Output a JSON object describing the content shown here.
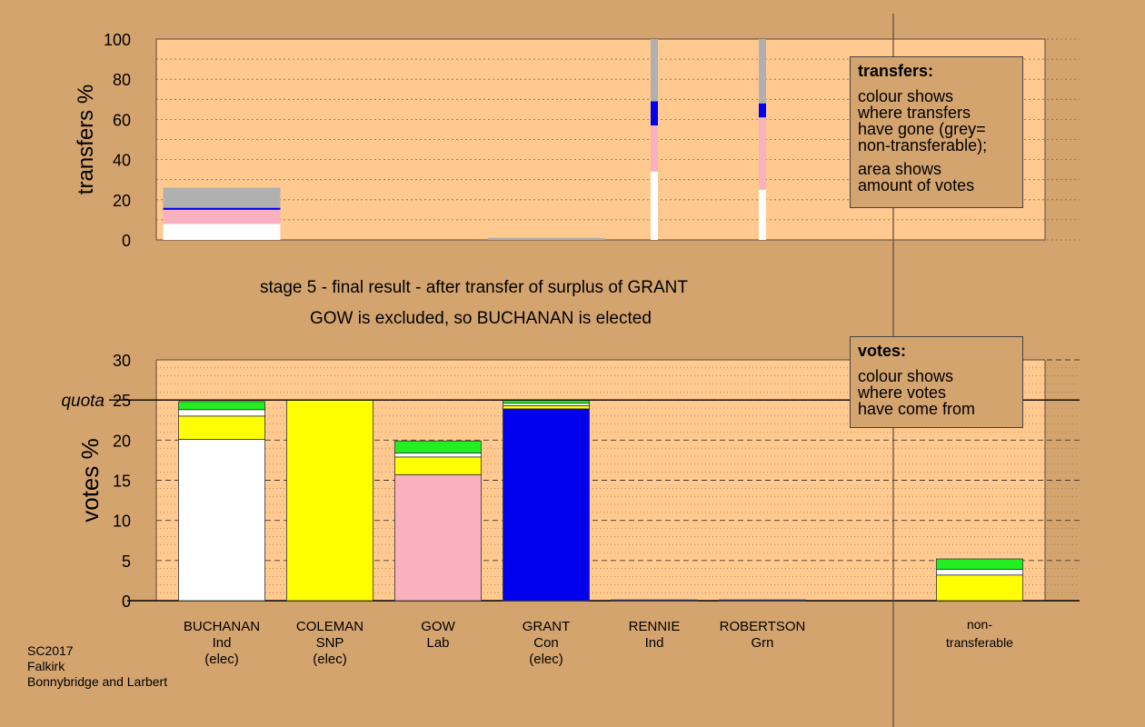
{
  "chart_data": [
    {
      "type": "bar",
      "ylabel": "transfers %",
      "ylim": [
        0,
        100
      ],
      "yticks": [
        "0",
        "20",
        "40",
        "60",
        "80",
        "100"
      ],
      "grid": "dotted",
      "colors": {
        "white": "#ffffff",
        "pink": "#f9b1c0",
        "blue": "#0000ee",
        "grey": "#b0b0b0",
        "plot_bg": "#ffc98f"
      },
      "transfers": [
        {
          "position": "BUCHANAN",
          "width": "wide",
          "segments": [
            {
              "color": "white",
              "from": 0,
              "to": 8
            },
            {
              "color": "pink",
              "from": 8,
              "to": 15
            },
            {
              "color": "blue",
              "from": 15,
              "to": 16
            },
            {
              "color": "grey",
              "from": 16,
              "to": 26
            }
          ]
        },
        {
          "position": "GRANT",
          "width": "wide",
          "segments": [
            {
              "color": "grey",
              "from": 0,
              "to": 1
            }
          ]
        },
        {
          "position": "RENNIE",
          "width": "narrow",
          "segments": [
            {
              "color": "white",
              "from": 0,
              "to": 34
            },
            {
              "color": "pink",
              "from": 34,
              "to": 57
            },
            {
              "color": "blue",
              "from": 57,
              "to": 69
            },
            {
              "color": "grey",
              "from": 69,
              "to": 100
            }
          ]
        },
        {
          "position": "ROBERTSON",
          "width": "narrow",
          "segments": [
            {
              "color": "white",
              "from": 0,
              "to": 25
            },
            {
              "color": "pink",
              "from": 25,
              "to": 61
            },
            {
              "color": "blue",
              "from": 61,
              "to": 68
            },
            {
              "color": "grey",
              "from": 68,
              "to": 100
            }
          ]
        }
      ],
      "legend": {
        "title": "transfers:",
        "lines_a": [
          "colour shows",
          "where transfers",
          "have gone (grey=",
          "non-transferable);"
        ],
        "lines_b": [
          "area shows",
          "amount of votes"
        ]
      }
    },
    {
      "type": "bar",
      "ylabel": "votes %",
      "ylim": [
        0,
        30
      ],
      "yticks": [
        "0",
        "5",
        "10",
        "15",
        "20",
        "25",
        "30"
      ],
      "quota": 25,
      "quota_label": "quota",
      "grid": "dashed",
      "colors": {
        "white": "#ffffff",
        "yellow": "#ffff00",
        "pink": "#f9b1c0",
        "blue": "#0000ee",
        "green": "#22ee22",
        "plot_bg": "#ffc98f"
      },
      "categories": [
        {
          "name": "BUCHANAN",
          "party": "Ind",
          "status": "(elec)"
        },
        {
          "name": "COLEMAN",
          "party": "SNP",
          "status": "(elec)"
        },
        {
          "name": "GOW",
          "party": "Lab",
          "status": ""
        },
        {
          "name": "GRANT",
          "party": "Con",
          "status": "(elec)"
        },
        {
          "name": "RENNIE",
          "party": "Ind",
          "status": ""
        },
        {
          "name": "ROBERTSON",
          "party": "Grn",
          "status": ""
        }
      ],
      "nontransferable_label": [
        "non-",
        "transferable"
      ],
      "votes": [
        {
          "segments": [
            {
              "color": "white",
              "value": 20.1
            },
            {
              "color": "yellow",
              "value": 2.9
            },
            {
              "color": "white",
              "value": 0.8
            },
            {
              "color": "green",
              "value": 1.0
            }
          ]
        },
        {
          "segments": [
            {
              "color": "yellow",
              "value": 25.0
            }
          ]
        },
        {
          "segments": [
            {
              "color": "pink",
              "value": 15.7
            },
            {
              "color": "yellow",
              "value": 2.2
            },
            {
              "color": "white",
              "value": 0.5
            },
            {
              "color": "green",
              "value": 1.5
            }
          ]
        },
        {
          "segments": [
            {
              "color": "blue",
              "value": 23.9
            },
            {
              "color": "yellow",
              "value": 0.4
            },
            {
              "color": "white",
              "value": 0.3
            },
            {
              "color": "green",
              "value": 0.4
            }
          ]
        },
        {
          "segments": [
            {
              "color": "blue",
              "value": 0.1
            }
          ]
        },
        {
          "segments": [
            {
              "color": "blue",
              "value": 0.1
            }
          ]
        }
      ],
      "nontransferable": {
        "segments": [
          {
            "color": "yellow",
            "value": 3.2
          },
          {
            "color": "white",
            "value": 0.7
          },
          {
            "color": "green",
            "value": 1.3
          }
        ]
      },
      "legend": {
        "title": "votes:",
        "lines_a": [
          "colour shows",
          "where votes",
          "have come from"
        ]
      }
    }
  ],
  "stage_text": "stage 5 - final result - after transfer of surplus of GRANT",
  "result_text": "GOW is excluded, so BUCHANAN is elected",
  "footer": [
    "SC2017",
    "Falkirk",
    "Bonnybridge and Larbert"
  ]
}
